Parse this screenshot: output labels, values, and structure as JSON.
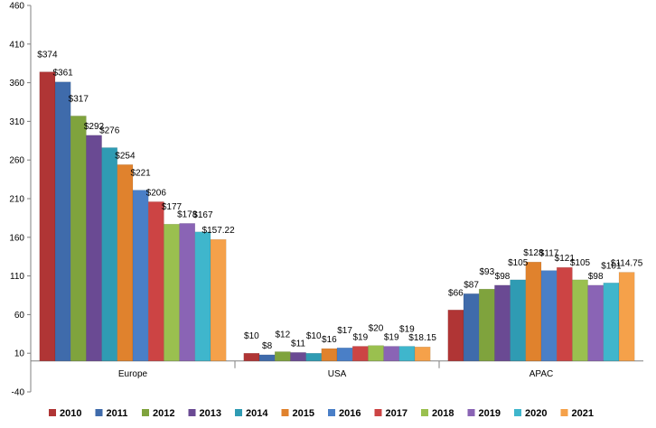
{
  "chart_data": {
    "type": "bar",
    "categories": [
      "Europe",
      "USA",
      "APAC"
    ],
    "ylim": [
      -40,
      460
    ],
    "yticks": [
      -40,
      10,
      60,
      110,
      160,
      210,
      260,
      310,
      360,
      410,
      460
    ],
    "grid": false,
    "legend_position": "bottom",
    "series": [
      {
        "name": "2010",
        "color": "#b03535",
        "values": [
          374,
          10,
          66
        ],
        "labels": [
          "$374",
          "$10",
          "$66"
        ]
      },
      {
        "name": "2011",
        "color": "#3f6bab",
        "values": [
          361,
          8,
          87
        ],
        "labels": [
          "$361",
          "$8",
          "$87"
        ]
      },
      {
        "name": "2012",
        "color": "#7fa33d",
        "values": [
          317,
          12,
          93
        ],
        "labels": [
          "$317",
          "$12",
          "$93"
        ]
      },
      {
        "name": "2013",
        "color": "#6a4a93",
        "values": [
          292,
          11,
          98
        ],
        "labels": [
          "$292",
          "$11",
          "$98"
        ]
      },
      {
        "name": "2014",
        "color": "#2f9bb3",
        "values": [
          276,
          10,
          105
        ],
        "labels": [
          "$276",
          "$10",
          "$105"
        ]
      },
      {
        "name": "2015",
        "color": "#e0822d",
        "values": [
          254,
          16,
          128
        ],
        "labels": [
          "$254",
          "$16",
          "$128"
        ]
      },
      {
        "name": "2016",
        "color": "#4a7fc7",
        "values": [
          221,
          17,
          117
        ],
        "labels": [
          "$221",
          "$17",
          "$117"
        ]
      },
      {
        "name": "2017",
        "color": "#cc4444",
        "values": [
          206,
          19,
          121
        ],
        "labels": [
          "$206",
          "$19",
          "$121"
        ]
      },
      {
        "name": "2018",
        "color": "#9ac04f",
        "values": [
          177,
          20,
          105
        ],
        "labels": [
          "$177",
          "$20",
          "$105"
        ]
      },
      {
        "name": "2019",
        "color": "#8a64b5",
        "values": [
          178,
          19,
          98
        ],
        "labels": [
          "$178",
          "$19",
          "$98"
        ]
      },
      {
        "name": "2020",
        "color": "#3fb6cc",
        "values": [
          167,
          19,
          101
        ],
        "labels": [
          "$167",
          "$19",
          "$101"
        ]
      },
      {
        "name": "2021",
        "color": "#f5a14a",
        "values": [
          157.22,
          18.15,
          114.75
        ],
        "labels": [
          "$157.22",
          "$18.15",
          "$114.75"
        ]
      }
    ]
  }
}
